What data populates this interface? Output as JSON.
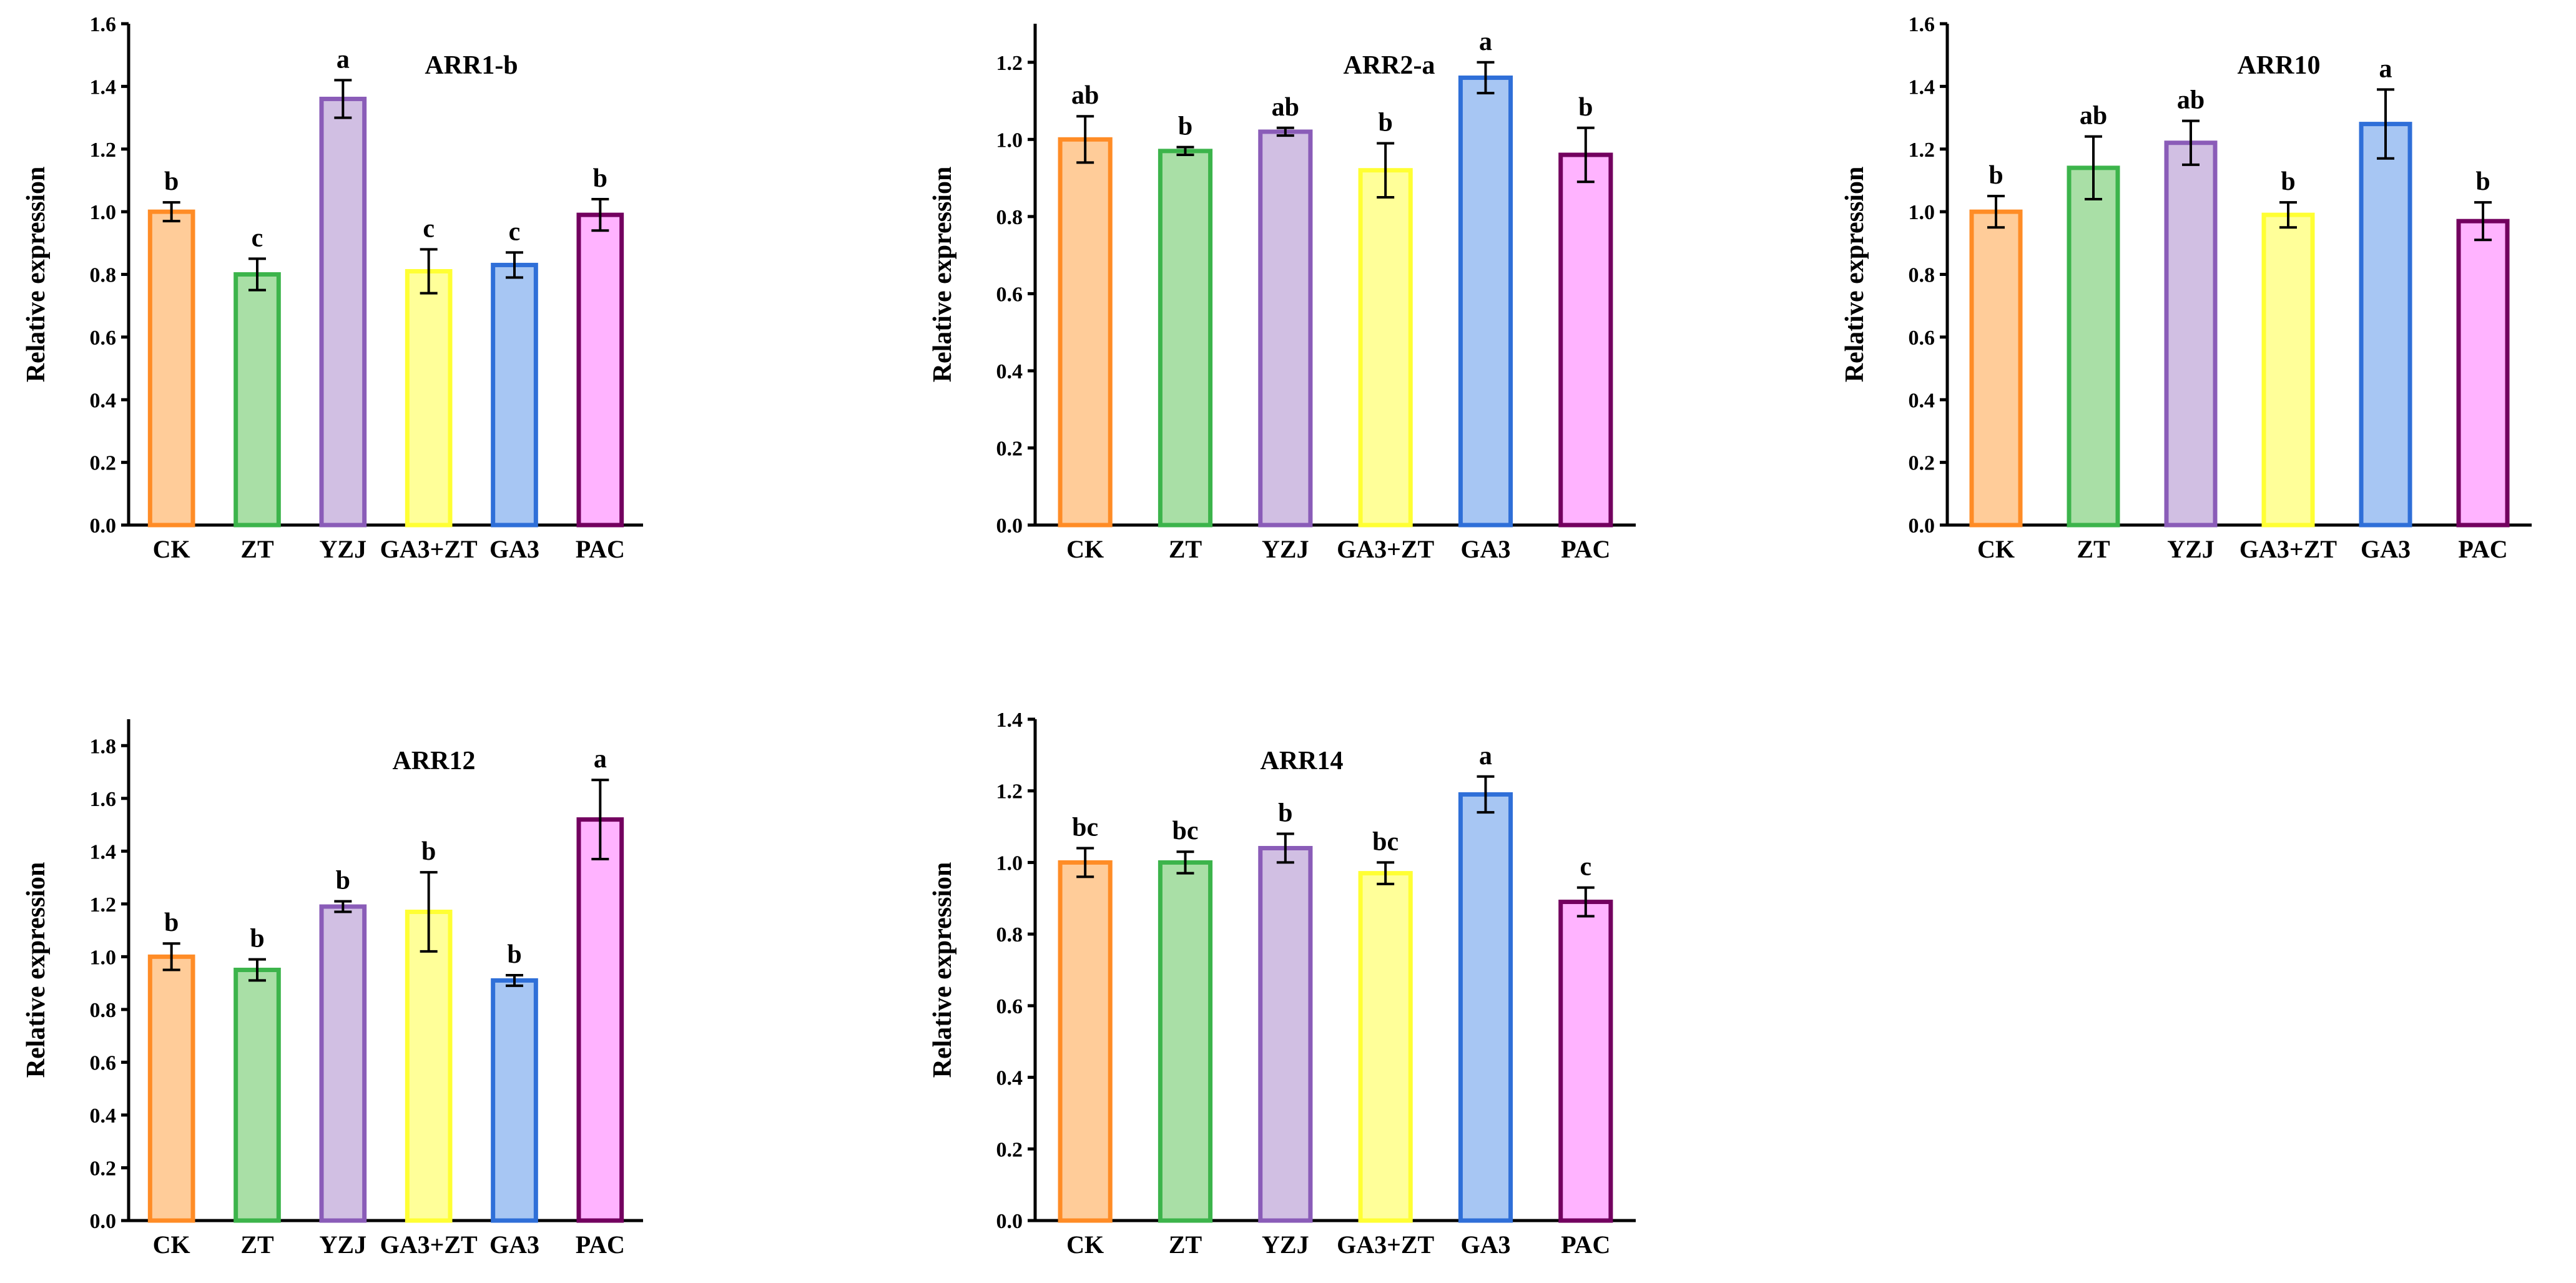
{
  "chart_data": [
    {
      "type": "bar",
      "title": "ARR1-b",
      "ylabel": "Relative expression",
      "xlabel": "",
      "ylim": [
        0,
        1.6
      ],
      "yticks": [
        "0.0",
        "0.2",
        "0.4",
        "0.6",
        "0.8",
        "1.0",
        "1.2",
        "1.4",
        "1.6"
      ],
      "categories": [
        "CK",
        "ZT",
        "YZJ",
        "GA3+ZT",
        "GA3",
        "PAC"
      ],
      "values": [
        1.0,
        0.8,
        1.36,
        0.81,
        0.83,
        0.99
      ],
      "errors": [
        0.03,
        0.05,
        0.06,
        0.07,
        0.04,
        0.05
      ],
      "letters": [
        "b",
        "c",
        "a",
        "c",
        "c",
        "b"
      ],
      "fill_colors": [
        "#ffcc99",
        "#a9dfa6",
        "#d1bfe3",
        "#ffff99",
        "#a7c6f3",
        "#ffb3ff"
      ],
      "stroke_colors": [
        "#ff8c26",
        "#3cb44b",
        "#8a5cb8",
        "#ffff33",
        "#2f6fd8",
        "#73005f"
      ]
    },
    {
      "type": "bar",
      "title": "ARR2-a",
      "ylabel": "Relative expression",
      "xlabel": "",
      "ylim": [
        0,
        1.3
      ],
      "yticks": [
        "0.0",
        "0.2",
        "0.4",
        "0.6",
        "0.8",
        "1.0",
        "1.2"
      ],
      "categories": [
        "CK",
        "ZT",
        "YZJ",
        "GA3+ZT",
        "GA3",
        "PAC"
      ],
      "values": [
        1.0,
        0.97,
        1.02,
        0.92,
        1.16,
        0.96
      ],
      "errors": [
        0.06,
        0.01,
        0.01,
        0.07,
        0.04,
        0.07
      ],
      "letters": [
        "ab",
        "b",
        "ab",
        "b",
        "a",
        "b"
      ],
      "fill_colors": [
        "#ffcc99",
        "#a9dfa6",
        "#d1bfe3",
        "#ffff99",
        "#a7c6f3",
        "#ffb3ff"
      ],
      "stroke_colors": [
        "#ff8c26",
        "#3cb44b",
        "#8a5cb8",
        "#ffff33",
        "#2f6fd8",
        "#73005f"
      ]
    },
    {
      "type": "bar",
      "title": "ARR10",
      "ylabel": "Relative expression",
      "xlabel": "",
      "ylim": [
        0,
        1.6
      ],
      "yticks": [
        "0.0",
        "0.2",
        "0.4",
        "0.6",
        "0.8",
        "1.0",
        "1.2",
        "1.4",
        "1.6"
      ],
      "categories": [
        "CK",
        "ZT",
        "YZJ",
        "GA3+ZT",
        "GA3",
        "PAC"
      ],
      "values": [
        1.0,
        1.14,
        1.22,
        0.99,
        1.28,
        0.97
      ],
      "errors": [
        0.05,
        0.1,
        0.07,
        0.04,
        0.11,
        0.06
      ],
      "letters": [
        "b",
        "ab",
        "ab",
        "b",
        "a",
        "b"
      ],
      "fill_colors": [
        "#ffcc99",
        "#a9dfa6",
        "#d1bfe3",
        "#ffff99",
        "#a7c6f3",
        "#ffb3ff"
      ],
      "stroke_colors": [
        "#ff8c26",
        "#3cb44b",
        "#8a5cb8",
        "#ffff33",
        "#2f6fd8",
        "#73005f"
      ]
    },
    {
      "type": "bar",
      "title": "ARR12",
      "ylabel": "Relative expression",
      "xlabel": "",
      "ylim": [
        0,
        1.9
      ],
      "yticks": [
        "0.0",
        "0.2",
        "0.4",
        "0.6",
        "0.8",
        "1.0",
        "1.2",
        "1.4",
        "1.6",
        "1.8"
      ],
      "categories": [
        "CK",
        "ZT",
        "YZJ",
        "GA3+ZT",
        "GA3",
        "PAC"
      ],
      "values": [
        1.0,
        0.95,
        1.19,
        1.17,
        0.91,
        1.52
      ],
      "errors": [
        0.05,
        0.04,
        0.02,
        0.15,
        0.02,
        0.15
      ],
      "letters": [
        "b",
        "b",
        "b",
        "b",
        "b",
        "a"
      ],
      "fill_colors": [
        "#ffcc99",
        "#a9dfa6",
        "#d1bfe3",
        "#ffff99",
        "#a7c6f3",
        "#ffb3ff"
      ],
      "stroke_colors": [
        "#ff8c26",
        "#3cb44b",
        "#8a5cb8",
        "#ffff33",
        "#2f6fd8",
        "#73005f"
      ]
    },
    {
      "type": "bar",
      "title": "ARR14",
      "ylabel": "Relative expression",
      "xlabel": "",
      "ylim": [
        0,
        1.4
      ],
      "yticks": [
        "0.0",
        "0.2",
        "0.4",
        "0.6",
        "0.8",
        "1.0",
        "1.2",
        "1.4"
      ],
      "categories": [
        "CK",
        "ZT",
        "YZJ",
        "GA3+ZT",
        "GA3",
        "PAC"
      ],
      "values": [
        1.0,
        1.0,
        1.04,
        0.97,
        1.19,
        0.89
      ],
      "errors": [
        0.04,
        0.03,
        0.04,
        0.03,
        0.05,
        0.04
      ],
      "letters": [
        "bc",
        "bc",
        "b",
        "bc",
        "a",
        "c"
      ],
      "fill_colors": [
        "#ffcc99",
        "#a9dfa6",
        "#d1bfe3",
        "#ffff99",
        "#a7c6f3",
        "#ffb3ff"
      ],
      "stroke_colors": [
        "#ff8c26",
        "#3cb44b",
        "#8a5cb8",
        "#ffff33",
        "#2f6fd8",
        "#73005f"
      ]
    }
  ]
}
